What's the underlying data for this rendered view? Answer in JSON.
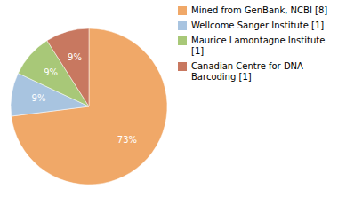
{
  "chart_data": {
    "type": "pie",
    "categories": [
      "Mined from GenBank, NCBI [8]",
      "Wellcome Sanger Institute [1]",
      "Maurice Lamontagne Institute [1]",
      "Canadian Centre for DNA\nBarcoding [1]"
    ],
    "values": [
      73,
      9,
      9,
      9
    ],
    "value_labels": [
      "73%",
      "9%",
      "9%",
      "9%"
    ],
    "data_labels": true,
    "colors": [
      "#f0a868",
      "#a8c4e0",
      "#a8c878",
      "#c87860"
    ],
    "legend": "right"
  }
}
